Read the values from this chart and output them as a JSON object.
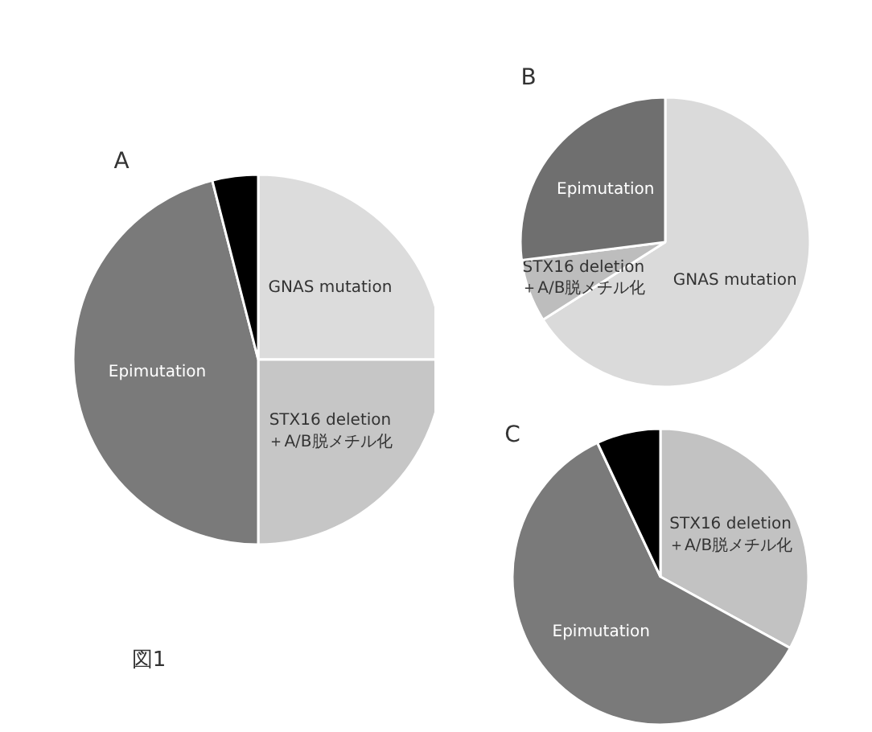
{
  "chart_data": [
    {
      "type": "pie",
      "title": "A",
      "categories": [
        "GNAS mutation",
        "STX16 deletion\n＋A/B脱メチル化",
        "Epimutation",
        null
      ],
      "values": [
        25,
        25,
        46,
        4
      ],
      "colors": [
        "#dcdcdc",
        "#c6c6c6",
        "#7a7a7a",
        "#000000"
      ],
      "annotations": [
        "図1"
      ]
    },
    {
      "type": "pie",
      "title": "B",
      "categories": [
        "GNAS mutation",
        "STX16 deletion\n＋A/B脱メチル化",
        "Epimutation"
      ],
      "values": [
        66,
        7,
        27
      ],
      "colors": [
        "#dadada",
        "#bdbdbd",
        "#6f6f6f"
      ]
    },
    {
      "type": "pie",
      "title": "C",
      "categories": [
        "STX16 deletion\n＋A/B脱メチル化",
        "Epimutation",
        null
      ],
      "values": [
        33,
        60,
        7
      ],
      "colors": [
        "#c2c2c2",
        "#7a7a7a",
        "#000000"
      ]
    }
  ]
}
